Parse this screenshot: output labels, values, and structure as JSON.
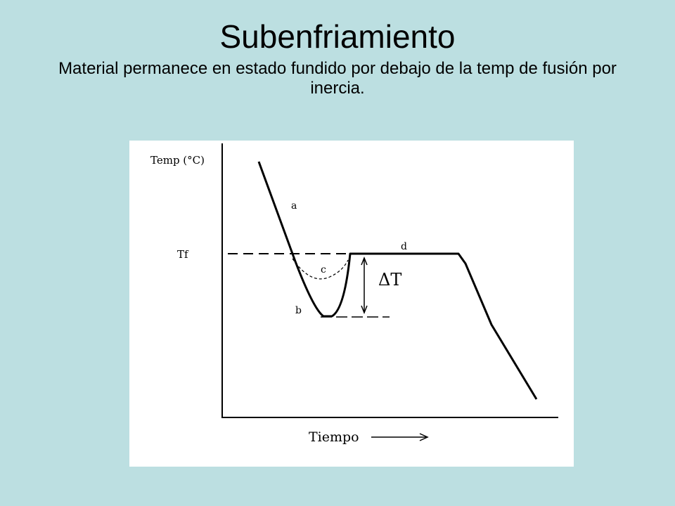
{
  "slide": {
    "title": "Subenfriamiento",
    "subtitle": "Material permanece en estado fundido por debajo de la temp de fusión por inercia."
  },
  "diagram": {
    "y_axis_label": "Temp (°C)",
    "x_axis_label": "Tiempo",
    "tf_label": "Tf",
    "delta_label": "ΔT",
    "curve_labels": {
      "a": "a",
      "b": "b",
      "c": "c",
      "d": "d"
    }
  },
  "colors": {
    "background": "#bcdfe1",
    "figure_background": "#ffffff",
    "ink": "#000000"
  }
}
